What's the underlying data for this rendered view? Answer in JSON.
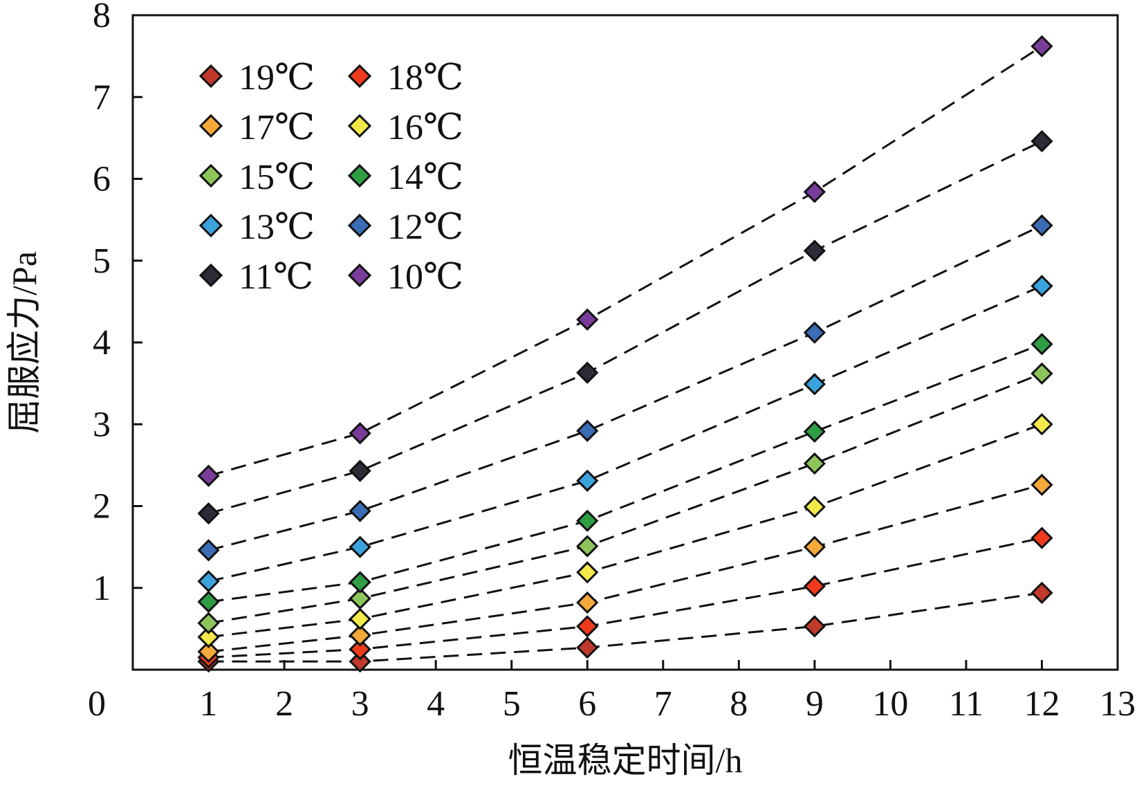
{
  "chart_data": {
    "type": "scatter",
    "xlabel": "恒温稳定时间/h",
    "ylabel": "屈服应力/Pa",
    "xlim": [
      0,
      13
    ],
    "ylim": [
      0,
      8
    ],
    "x_origin_label": "0",
    "x_ticks": [
      "1",
      "2",
      "3",
      "4",
      "5",
      "6",
      "7",
      "8",
      "9",
      "10",
      "11",
      "12",
      "13"
    ],
    "y_ticks": [
      "1",
      "2",
      "3",
      "4",
      "5",
      "6",
      "7",
      "8"
    ],
    "grid": false,
    "line_style": "dashed",
    "marker": "diamond",
    "legend_position": "top-left",
    "legend_columns": 2,
    "x": [
      1,
      3,
      6,
      9,
      12
    ],
    "series": [
      {
        "name": "19℃",
        "color": "#c0392b",
        "values": [
          0.1,
          0.1,
          0.27,
          0.53,
          0.94
        ]
      },
      {
        "name": "18℃",
        "color": "#f03a1e",
        "values": [
          0.15,
          0.25,
          0.53,
          1.02,
          1.61
        ]
      },
      {
        "name": "17℃",
        "color": "#f5a93b",
        "values": [
          0.22,
          0.42,
          0.82,
          1.5,
          2.26
        ]
      },
      {
        "name": "16℃",
        "color": "#f3e94a",
        "values": [
          0.4,
          0.62,
          1.19,
          1.99,
          3.0
        ]
      },
      {
        "name": "15℃",
        "color": "#8dc55a",
        "values": [
          0.57,
          0.87,
          1.51,
          2.52,
          3.62
        ]
      },
      {
        "name": "14℃",
        "color": "#2e9e44",
        "values": [
          0.83,
          1.07,
          1.82,
          2.91,
          3.98
        ]
      },
      {
        "name": "13℃",
        "color": "#3ba3dc",
        "values": [
          1.08,
          1.5,
          2.31,
          3.49,
          4.69
        ]
      },
      {
        "name": "12℃",
        "color": "#3a6db5",
        "values": [
          1.46,
          1.94,
          2.92,
          4.12,
          5.43
        ]
      },
      {
        "name": "11℃",
        "color": "#2e2a36",
        "values": [
          1.91,
          2.43,
          3.63,
          5.12,
          6.46
        ]
      },
      {
        "name": "10℃",
        "color": "#7a3c9a",
        "values": [
          2.37,
          2.89,
          4.28,
          5.84,
          7.62
        ]
      }
    ]
  }
}
